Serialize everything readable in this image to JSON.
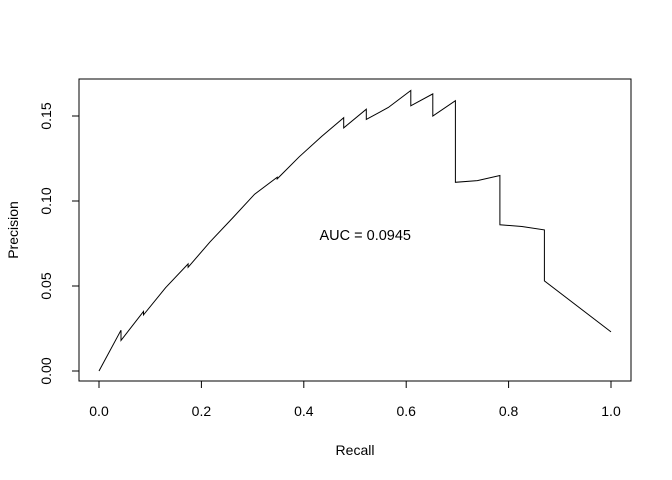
{
  "chart_data": {
    "type": "line",
    "title": "",
    "xlabel": "Recall",
    "ylabel": "Precision",
    "xlim": [
      0,
      1
    ],
    "ylim": [
      0,
      0.165
    ],
    "x_ticks": [
      "0.0",
      "0.2",
      "0.4",
      "0.6",
      "0.8",
      "1.0"
    ],
    "y_ticks": [
      "0.00",
      "0.05",
      "0.10",
      "0.15"
    ],
    "grid": false,
    "legend": "none",
    "line_color": "#000000",
    "annotation": {
      "text": "AUC  = 0.0945",
      "x": 0.52,
      "y": 0.08
    },
    "series": [
      {
        "x": [
          0.0,
          0.043,
          0.043,
          0.087,
          0.087,
          0.13,
          0.174,
          0.174,
          0.217,
          0.261,
          0.304,
          0.348,
          0.348,
          0.391,
          0.435,
          0.478,
          0.478,
          0.522,
          0.522,
          0.565,
          0.609,
          0.609,
          0.652,
          0.652,
          0.696,
          0.696,
          0.739,
          0.783,
          0.783,
          0.826,
          0.87,
          0.87,
          1.0
        ],
        "y": [
          0.0,
          0.024,
          0.018,
          0.035,
          0.033,
          0.049,
          0.063,
          0.061,
          0.076,
          0.09,
          0.104,
          0.114,
          0.113,
          0.126,
          0.138,
          0.149,
          0.143,
          0.154,
          0.148,
          0.155,
          0.165,
          0.156,
          0.163,
          0.15,
          0.159,
          0.111,
          0.112,
          0.115,
          0.086,
          0.085,
          0.083,
          0.053,
          0.023
        ]
      }
    ]
  }
}
